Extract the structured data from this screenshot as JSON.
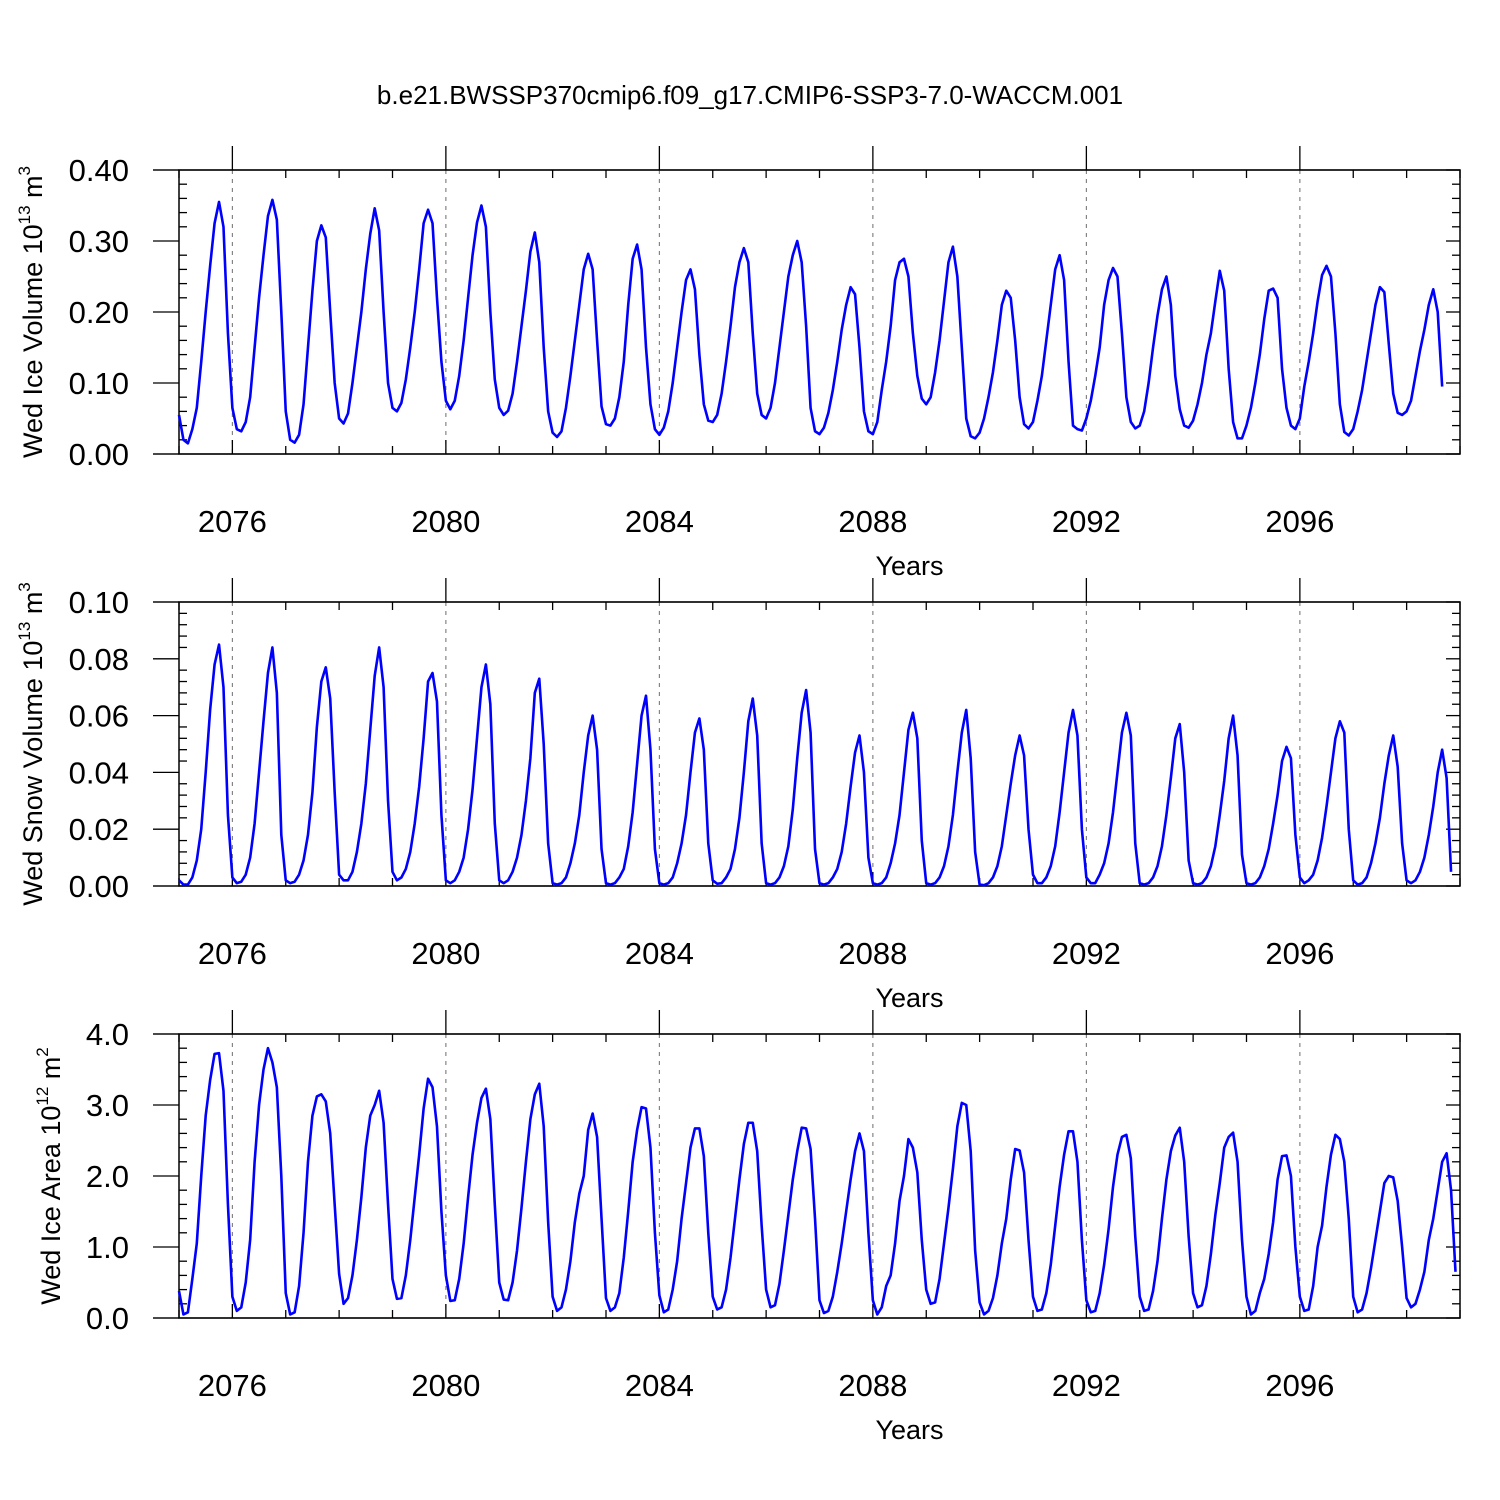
{
  "title": "b.e21.BWSSP370cmip6.f09_g17.CMIP6-SSP3-7.0-WACCM.001",
  "chart_data": [
    {
      "type": "line",
      "ylabel": "Wed Ice Volume 10",
      "ylabel_exp": "13",
      "ylabel_unit": "m",
      "ylabel_unit_exp": "3",
      "xlabel": "Years",
      "ylim": [
        0,
        0.4
      ],
      "yticks": [
        "0.00",
        "0.10",
        "0.20",
        "0.30",
        "0.40"
      ],
      "yticks_values": [
        0,
        0.1,
        0.2,
        0.3,
        0.4
      ],
      "xlim": [
        2075,
        2099
      ],
      "xticks": [
        "2076",
        "2080",
        "2084",
        "2088",
        "2092",
        "2096"
      ],
      "xticks_values": [
        2076,
        2080,
        2084,
        2088,
        2092,
        2096
      ],
      "grid": "dashed vertical lines at labeled years",
      "color": "#0000ff",
      "series": [
        {
          "x_start": 2075.0,
          "x_step": 0.08333,
          "values": [
            0.055,
            0.02,
            0.015,
            0.035,
            0.065,
            0.13,
            0.2,
            0.265,
            0.325,
            0.355,
            0.32,
            0.17,
            0.065,
            0.035,
            0.032,
            0.045,
            0.08,
            0.15,
            0.22,
            0.28,
            0.335,
            0.358,
            0.33,
            0.2,
            0.06,
            0.02,
            0.016,
            0.027,
            0.07,
            0.15,
            0.23,
            0.3,
            0.322,
            0.305,
            0.2,
            0.1,
            0.05,
            0.043,
            0.057,
            0.1,
            0.15,
            0.2,
            0.26,
            0.31,
            0.346,
            0.315,
            0.2,
            0.1,
            0.065,
            0.06,
            0.072,
            0.105,
            0.15,
            0.2,
            0.26,
            0.325,
            0.344,
            0.325,
            0.22,
            0.13,
            0.075,
            0.063,
            0.075,
            0.11,
            0.16,
            0.22,
            0.28,
            0.326,
            0.35,
            0.32,
            0.2,
            0.105,
            0.065,
            0.055,
            0.061,
            0.085,
            0.13,
            0.18,
            0.23,
            0.285,
            0.312,
            0.27,
            0.15,
            0.06,
            0.03,
            0.024,
            0.032,
            0.065,
            0.11,
            0.16,
            0.21,
            0.26,
            0.282,
            0.26,
            0.16,
            0.067,
            0.042,
            0.04,
            0.05,
            0.08,
            0.13,
            0.21,
            0.275,
            0.295,
            0.26,
            0.15,
            0.07,
            0.035,
            0.027,
            0.037,
            0.06,
            0.1,
            0.15,
            0.2,
            0.245,
            0.26,
            0.232,
            0.14,
            0.07,
            0.047,
            0.045,
            0.055,
            0.085,
            0.13,
            0.18,
            0.235,
            0.27,
            0.29,
            0.27,
            0.17,
            0.085,
            0.055,
            0.05,
            0.065,
            0.1,
            0.15,
            0.2,
            0.25,
            0.28,
            0.3,
            0.27,
            0.18,
            0.065,
            0.032,
            0.028,
            0.037,
            0.058,
            0.09,
            0.13,
            0.175,
            0.21,
            0.235,
            0.225,
            0.15,
            0.06,
            0.032,
            0.028,
            0.045,
            0.09,
            0.13,
            0.18,
            0.245,
            0.27,
            0.275,
            0.25,
            0.17,
            0.11,
            0.078,
            0.07,
            0.08,
            0.115,
            0.16,
            0.215,
            0.27,
            0.292,
            0.25,
            0.15,
            0.05,
            0.025,
            0.022,
            0.03,
            0.05,
            0.08,
            0.115,
            0.16,
            0.21,
            0.23,
            0.22,
            0.16,
            0.08,
            0.042,
            0.036,
            0.045,
            0.075,
            0.11,
            0.16,
            0.21,
            0.26,
            0.28,
            0.245,
            0.13,
            0.04,
            0.035,
            0.033,
            0.05,
            0.075,
            0.11,
            0.15,
            0.21,
            0.245,
            0.262,
            0.25,
            0.17,
            0.08,
            0.045,
            0.036,
            0.04,
            0.06,
            0.1,
            0.15,
            0.195,
            0.232,
            0.25,
            0.21,
            0.11,
            0.063,
            0.04,
            0.037,
            0.047,
            0.07,
            0.1,
            0.14,
            0.17,
            0.215,
            0.258,
            0.23,
            0.12,
            0.045,
            0.022,
            0.022,
            0.04,
            0.065,
            0.1,
            0.14,
            0.19,
            0.23,
            0.233,
            0.22,
            0.12,
            0.065,
            0.04,
            0.035,
            0.05,
            0.095,
            0.13,
            0.17,
            0.215,
            0.252,
            0.265,
            0.25,
            0.17,
            0.07,
            0.031,
            0.026,
            0.035,
            0.06,
            0.09,
            0.13,
            0.17,
            0.21,
            0.235,
            0.228,
            0.155,
            0.085,
            0.058,
            0.055,
            0.06,
            0.075,
            0.11,
            0.145,
            0.175,
            0.21,
            0.232,
            0.2,
            0.095
          ]
        }
      ]
    },
    {
      "type": "line",
      "ylabel": "Wed Snow Volume 10",
      "ylabel_exp": "13",
      "ylabel_unit": "m",
      "ylabel_unit_exp": "3",
      "xlabel": "Years",
      "ylim": [
        0,
        0.1
      ],
      "yticks": [
        "0.00",
        "0.02",
        "0.04",
        "0.06",
        "0.08",
        "0.10"
      ],
      "yticks_values": [
        0,
        0.02,
        0.04,
        0.06,
        0.08,
        0.1
      ],
      "xlim": [
        2075,
        2099
      ],
      "xticks": [
        "2076",
        "2080",
        "2084",
        "2088",
        "2092",
        "2096"
      ],
      "xticks_values": [
        2076,
        2080,
        2084,
        2088,
        2092,
        2096
      ],
      "grid": "dashed vertical lines at labeled years",
      "color": "#0000ff",
      "series": [
        {
          "x_start": 2075.0,
          "x_step": 0.08333,
          "values": [
            0.002,
            0.0005,
            0.0005,
            0.003,
            0.009,
            0.02,
            0.04,
            0.062,
            0.078,
            0.085,
            0.07,
            0.025,
            0.003,
            0.001,
            0.0015,
            0.004,
            0.01,
            0.022,
            0.04,
            0.058,
            0.075,
            0.084,
            0.068,
            0.018,
            0.002,
            0.001,
            0.0015,
            0.004,
            0.009,
            0.018,
            0.033,
            0.056,
            0.072,
            0.077,
            0.066,
            0.033,
            0.004,
            0.002,
            0.002,
            0.005,
            0.012,
            0.022,
            0.036,
            0.055,
            0.074,
            0.084,
            0.07,
            0.03,
            0.005,
            0.002,
            0.003,
            0.006,
            0.012,
            0.022,
            0.035,
            0.052,
            0.072,
            0.075,
            0.065,
            0.025,
            0.002,
            0.001,
            0.002,
            0.005,
            0.01,
            0.02,
            0.034,
            0.052,
            0.07,
            0.078,
            0.064,
            0.022,
            0.002,
            0.001,
            0.002,
            0.005,
            0.01,
            0.018,
            0.03,
            0.045,
            0.068,
            0.073,
            0.05,
            0.015,
            0.001,
            0.0005,
            0.001,
            0.003,
            0.008,
            0.015,
            0.025,
            0.04,
            0.053,
            0.06,
            0.048,
            0.013,
            0.001,
            0.0005,
            0.001,
            0.003,
            0.006,
            0.014,
            0.026,
            0.043,
            0.06,
            0.067,
            0.048,
            0.013,
            0.001,
            0.0005,
            0.001,
            0.003,
            0.008,
            0.015,
            0.025,
            0.04,
            0.054,
            0.059,
            0.048,
            0.015,
            0.002,
            0.0008,
            0.001,
            0.003,
            0.006,
            0.013,
            0.024,
            0.04,
            0.058,
            0.066,
            0.053,
            0.015,
            0.001,
            0.0005,
            0.001,
            0.003,
            0.007,
            0.014,
            0.027,
            0.045,
            0.061,
            0.069,
            0.054,
            0.013,
            0.001,
            0.0005,
            0.001,
            0.003,
            0.006,
            0.012,
            0.022,
            0.035,
            0.047,
            0.053,
            0.04,
            0.01,
            0.001,
            0.0005,
            0.001,
            0.003,
            0.008,
            0.015,
            0.025,
            0.04,
            0.055,
            0.061,
            0.052,
            0.016,
            0.001,
            0.0005,
            0.001,
            0.003,
            0.007,
            0.014,
            0.025,
            0.04,
            0.054,
            0.062,
            0.045,
            0.012,
            0.0005,
            0.0003,
            0.001,
            0.003,
            0.007,
            0.014,
            0.025,
            0.036,
            0.046,
            0.053,
            0.046,
            0.02,
            0.004,
            0.001,
            0.001,
            0.003,
            0.007,
            0.014,
            0.026,
            0.04,
            0.054,
            0.062,
            0.053,
            0.02,
            0.003,
            0.001,
            0.001,
            0.004,
            0.008,
            0.015,
            0.026,
            0.04,
            0.054,
            0.061,
            0.053,
            0.015,
            0.001,
            0.0005,
            0.001,
            0.003,
            0.007,
            0.014,
            0.025,
            0.038,
            0.052,
            0.057,
            0.04,
            0.009,
            0.001,
            0.0005,
            0.001,
            0.003,
            0.007,
            0.014,
            0.025,
            0.037,
            0.052,
            0.06,
            0.046,
            0.011,
            0.001,
            0.0005,
            0.001,
            0.003,
            0.007,
            0.013,
            0.022,
            0.032,
            0.044,
            0.049,
            0.045,
            0.018,
            0.003,
            0.001,
            0.002,
            0.004,
            0.009,
            0.017,
            0.028,
            0.04,
            0.052,
            0.058,
            0.054,
            0.02,
            0.002,
            0.0005,
            0.001,
            0.003,
            0.008,
            0.015,
            0.024,
            0.036,
            0.046,
            0.053,
            0.042,
            0.015,
            0.002,
            0.001,
            0.002,
            0.005,
            0.01,
            0.018,
            0.028,
            0.04,
            0.048,
            0.038,
            0.005
          ]
        }
      ]
    },
    {
      "type": "line",
      "ylabel": "Wed Ice Area 10",
      "ylabel_exp": "12",
      "ylabel_unit": "m",
      "ylabel_unit_exp": "2",
      "xlabel": "Years",
      "ylim": [
        0,
        4
      ],
      "yticks": [
        "0.0",
        "1.0",
        "2.0",
        "3.0",
        "4.0"
      ],
      "yticks_values": [
        0,
        1,
        2,
        3,
        4
      ],
      "xlim": [
        2075,
        2099
      ],
      "xticks": [
        "2076",
        "2080",
        "2084",
        "2088",
        "2092",
        "2096"
      ],
      "xticks_values": [
        2076,
        2080,
        2084,
        2088,
        2092,
        2096
      ],
      "grid": "dashed vertical lines at labeled years",
      "color": "#0000ff",
      "series": [
        {
          "x_start": 2075.0,
          "x_step": 0.08333,
          "values": [
            0.38,
            0.05,
            0.08,
            0.55,
            1.05,
            2.0,
            2.85,
            3.35,
            3.72,
            3.73,
            3.2,
            1.6,
            0.3,
            0.1,
            0.15,
            0.5,
            1.1,
            2.2,
            3.0,
            3.5,
            3.8,
            3.6,
            3.25,
            2.0,
            0.35,
            0.05,
            0.08,
            0.45,
            1.2,
            2.2,
            2.85,
            3.12,
            3.15,
            3.05,
            2.6,
            1.6,
            0.62,
            0.2,
            0.28,
            0.6,
            1.1,
            1.7,
            2.4,
            2.85,
            3.0,
            3.2,
            2.75,
            1.6,
            0.55,
            0.27,
            0.28,
            0.6,
            1.1,
            1.7,
            2.3,
            2.95,
            3.37,
            3.25,
            2.7,
            1.5,
            0.6,
            0.24,
            0.25,
            0.55,
            1.05,
            1.7,
            2.3,
            2.75,
            3.1,
            3.23,
            2.8,
            1.6,
            0.5,
            0.26,
            0.25,
            0.5,
            0.95,
            1.55,
            2.2,
            2.8,
            3.15,
            3.3,
            2.7,
            1.35,
            0.3,
            0.1,
            0.15,
            0.4,
            0.8,
            1.35,
            1.75,
            2.0,
            2.65,
            2.88,
            2.55,
            1.4,
            0.28,
            0.1,
            0.15,
            0.35,
            0.85,
            1.5,
            2.2,
            2.65,
            2.97,
            2.95,
            2.4,
            1.2,
            0.32,
            0.08,
            0.12,
            0.4,
            0.8,
            1.4,
            1.9,
            2.4,
            2.67,
            2.67,
            2.28,
            1.2,
            0.3,
            0.12,
            0.15,
            0.4,
            0.85,
            1.4,
            1.95,
            2.45,
            2.75,
            2.75,
            2.35,
            1.3,
            0.4,
            0.15,
            0.18,
            0.48,
            0.95,
            1.45,
            1.95,
            2.35,
            2.68,
            2.67,
            2.38,
            1.4,
            0.25,
            0.07,
            0.1,
            0.3,
            0.65,
            1.05,
            1.5,
            1.95,
            2.35,
            2.6,
            2.35,
            1.2,
            0.25,
            0.05,
            0.15,
            0.45,
            0.6,
            1.05,
            1.65,
            2.0,
            2.52,
            2.4,
            2.05,
            1.1,
            0.4,
            0.2,
            0.22,
            0.55,
            1.05,
            1.55,
            2.1,
            2.7,
            3.03,
            3.0,
            2.35,
            0.95,
            0.22,
            0.05,
            0.1,
            0.28,
            0.6,
            1.05,
            1.4,
            1.95,
            2.38,
            2.36,
            2.05,
            1.1,
            0.3,
            0.1,
            0.12,
            0.35,
            0.75,
            1.3,
            1.85,
            2.3,
            2.63,
            2.63,
            2.2,
            1.1,
            0.25,
            0.08,
            0.1,
            0.35,
            0.75,
            1.25,
            1.85,
            2.3,
            2.55,
            2.58,
            2.25,
            1.15,
            0.3,
            0.1,
            0.12,
            0.38,
            0.8,
            1.4,
            1.95,
            2.35,
            2.57,
            2.68,
            2.2,
            1.15,
            0.35,
            0.15,
            0.18,
            0.45,
            0.9,
            1.45,
            1.9,
            2.4,
            2.55,
            2.61,
            2.2,
            1.1,
            0.3,
            0.05,
            0.1,
            0.35,
            0.55,
            0.9,
            1.35,
            1.95,
            2.28,
            2.29,
            2.0,
            1.0,
            0.3,
            0.1,
            0.12,
            0.45,
            1.0,
            1.3,
            1.85,
            2.3,
            2.58,
            2.52,
            2.2,
            1.4,
            0.3,
            0.08,
            0.12,
            0.35,
            0.7,
            1.1,
            1.5,
            1.9,
            2.0,
            1.98,
            1.65,
            1.0,
            0.28,
            0.15,
            0.2,
            0.4,
            0.65,
            1.1,
            1.4,
            1.8,
            2.2,
            2.32,
            1.8,
            0.65
          ]
        }
      ]
    }
  ]
}
